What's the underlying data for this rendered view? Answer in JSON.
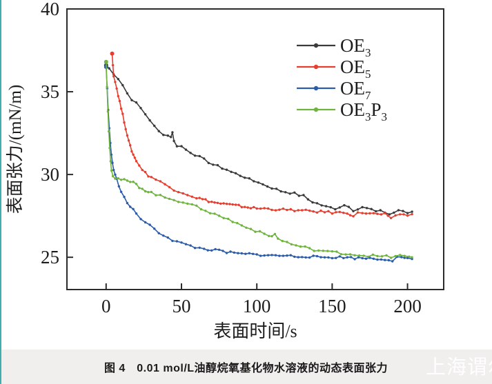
{
  "page": {
    "background": "#ffffff",
    "left_strip_color": "#3fafad",
    "caption_bar_color": "#f0efed"
  },
  "caption": {
    "text": "图 4　0.01 mol/L油醇烷氧基化物水溶液的动态表面张力"
  },
  "watermark": {
    "text": "上海谓尔"
  },
  "chart_data": {
    "type": "scatter",
    "title": "",
    "xlabel": "表面时间/s",
    "ylabel": "表面张力/(mN/m)",
    "xlim": [
      -26,
      224
    ],
    "ylim": [
      23.05,
      40
    ],
    "x_ticks": [
      0,
      50,
      100,
      150,
      200
    ],
    "y_ticks": [
      25,
      30,
      35,
      40
    ],
    "grid": false,
    "legend_position": "upper-right-inside",
    "axis_color": "#2b2b2b",
    "series": [
      {
        "name": "OE3",
        "label_parts": [
          "OE",
          "_3"
        ],
        "color": "#3a3a3a",
        "points": [
          [
            0,
            36.6
          ],
          [
            2,
            36.4
          ],
          [
            5,
            36.1
          ],
          [
            8,
            35.8
          ],
          [
            11,
            35.4
          ],
          [
            14,
            34.9
          ],
          [
            17,
            34.55
          ],
          [
            20,
            34.3
          ],
          [
            23,
            34.0
          ],
          [
            26,
            33.65
          ],
          [
            29,
            33.3
          ],
          [
            32,
            32.9
          ],
          [
            35,
            32.6
          ],
          [
            38,
            32.45
          ],
          [
            41,
            32.35
          ],
          [
            43,
            32.3
          ],
          [
            44,
            32.55
          ],
          [
            45,
            32.0
          ],
          [
            47,
            31.75
          ],
          [
            50,
            31.7
          ],
          [
            53,
            31.5
          ],
          [
            56,
            31.35
          ],
          [
            59,
            31.2
          ],
          [
            62,
            31.05
          ],
          [
            65,
            30.9
          ],
          [
            68,
            30.75
          ],
          [
            71,
            30.6
          ],
          [
            74,
            30.5
          ],
          [
            77,
            30.4
          ],
          [
            80,
            30.3
          ],
          [
            83,
            30.15
          ],
          [
            86,
            30.05
          ],
          [
            89,
            29.95
          ],
          [
            92,
            29.85
          ],
          [
            95,
            29.7
          ],
          [
            98,
            29.6
          ],
          [
            101,
            29.55
          ],
          [
            104,
            29.4
          ],
          [
            107,
            29.3
          ],
          [
            110,
            29.2
          ],
          [
            113,
            29.1
          ],
          [
            116,
            29.0
          ],
          [
            119,
            28.95
          ],
          [
            122,
            28.9
          ],
          [
            125,
            28.85
          ],
          [
            128,
            28.75
          ],
          [
            131,
            28.7
          ],
          [
            134,
            28.5
          ],
          [
            137,
            28.35
          ],
          [
            140,
            28.25
          ],
          [
            143,
            28.15
          ],
          [
            146,
            28.05
          ],
          [
            149,
            28.0
          ],
          [
            152,
            27.95
          ],
          [
            155,
            28.05
          ],
          [
            158,
            28.15
          ],
          [
            161,
            28.1
          ],
          [
            164,
            27.85
          ],
          [
            167,
            27.9
          ],
          [
            170,
            28.0
          ],
          [
            173,
            27.95
          ],
          [
            176,
            27.85
          ],
          [
            179,
            27.8
          ],
          [
            182,
            27.85
          ],
          [
            185,
            27.7
          ],
          [
            188,
            27.6
          ],
          [
            191,
            27.65
          ],
          [
            194,
            27.85
          ],
          [
            197,
            27.8
          ],
          [
            200,
            27.7
          ],
          [
            203,
            27.75
          ]
        ]
      },
      {
        "name": "OE5",
        "label_parts": [
          "OE",
          "_5"
        ],
        "color": "#e63e2e",
        "points": [
          [
            4,
            37.3
          ],
          [
            4.5,
            36.6
          ],
          [
            5,
            36.0
          ],
          [
            6,
            35.6
          ],
          [
            7,
            35.2
          ],
          [
            8,
            34.8
          ],
          [
            9,
            34.4
          ],
          [
            10,
            34.0
          ],
          [
            11,
            33.6
          ],
          [
            12,
            33.2
          ],
          [
            13,
            32.8
          ],
          [
            14,
            32.4
          ],
          [
            15,
            32.0
          ],
          [
            16,
            31.7
          ],
          [
            17,
            31.45
          ],
          [
            18,
            31.2
          ],
          [
            19,
            31.0
          ],
          [
            20,
            30.85
          ],
          [
            22,
            30.55
          ],
          [
            24,
            30.3
          ],
          [
            26,
            30.1
          ],
          [
            28,
            29.95
          ],
          [
            30,
            29.85
          ],
          [
            33,
            29.7
          ],
          [
            36,
            29.55
          ],
          [
            39,
            29.4
          ],
          [
            42,
            29.25
          ],
          [
            45,
            29.1
          ],
          [
            48,
            29.0
          ],
          [
            51,
            28.9
          ],
          [
            54,
            28.8
          ],
          [
            57,
            28.7
          ],
          [
            60,
            28.6
          ],
          [
            64,
            28.5
          ],
          [
            68,
            28.4
          ],
          [
            72,
            28.3
          ],
          [
            76,
            28.25
          ],
          [
            80,
            28.2
          ],
          [
            84,
            28.15
          ],
          [
            88,
            28.1
          ],
          [
            92,
            28.05
          ],
          [
            96,
            28.0
          ],
          [
            100,
            27.95
          ],
          [
            105,
            27.95
          ],
          [
            110,
            27.9
          ],
          [
            115,
            27.9
          ],
          [
            120,
            27.85
          ],
          [
            125,
            27.85
          ],
          [
            130,
            27.8
          ],
          [
            135,
            27.8
          ],
          [
            140,
            27.75
          ],
          [
            145,
            27.75
          ],
          [
            150,
            27.7
          ],
          [
            155,
            27.7
          ],
          [
            160,
            27.7
          ],
          [
            164,
            27.5
          ],
          [
            167,
            27.65
          ],
          [
            170,
            27.7
          ],
          [
            175,
            27.65
          ],
          [
            180,
            27.6
          ],
          [
            185,
            27.6
          ],
          [
            189,
            27.3
          ],
          [
            192,
            27.55
          ],
          [
            195,
            27.6
          ],
          [
            200,
            27.55
          ],
          [
            203,
            27.6
          ]
        ]
      },
      {
        "name": "OE7",
        "label_parts": [
          "OE",
          "_7"
        ],
        "color": "#2a5caa",
        "points": [
          [
            0,
            36.5
          ],
          [
            0.7,
            35.2
          ],
          [
            1.4,
            33.9
          ],
          [
            2.1,
            32.8
          ],
          [
            2.8,
            31.9
          ],
          [
            3.5,
            31.2
          ],
          [
            4.2,
            30.7
          ],
          [
            5,
            30.3
          ],
          [
            6,
            29.95
          ],
          [
            7,
            29.7
          ],
          [
            8.5,
            29.35
          ],
          [
            10,
            29.0
          ],
          [
            12,
            28.6
          ],
          [
            14,
            28.3
          ],
          [
            16,
            28.05
          ],
          [
            18,
            27.85
          ],
          [
            20,
            27.65
          ],
          [
            23,
            27.35
          ],
          [
            26,
            27.1
          ],
          [
            29,
            26.9
          ],
          [
            32,
            26.7
          ],
          [
            35,
            26.5
          ],
          [
            38,
            26.35
          ],
          [
            41,
            26.2
          ],
          [
            44,
            26.05
          ],
          [
            47,
            25.95
          ],
          [
            50,
            25.85
          ],
          [
            53,
            25.75
          ],
          [
            56,
            25.7
          ],
          [
            59,
            25.6
          ],
          [
            62,
            25.55
          ],
          [
            65,
            25.5
          ],
          [
            70,
            25.45
          ],
          [
            75,
            25.4
          ],
          [
            80,
            25.3
          ],
          [
            85,
            25.25
          ],
          [
            90,
            25.2
          ],
          [
            95,
            25.2
          ],
          [
            100,
            25.15
          ],
          [
            105,
            25.15
          ],
          [
            110,
            25.1
          ],
          [
            115,
            25.1
          ],
          [
            120,
            25.1
          ],
          [
            125,
            25.05
          ],
          [
            130,
            25.05
          ],
          [
            135,
            25.05
          ],
          [
            140,
            25.0
          ],
          [
            145,
            25.0
          ],
          [
            150,
            25.0
          ],
          [
            155,
            25.0
          ],
          [
            160,
            25.0
          ],
          [
            165,
            24.95
          ],
          [
            170,
            24.95
          ],
          [
            175,
            24.95
          ],
          [
            180,
            24.9
          ],
          [
            185,
            24.9
          ],
          [
            190,
            24.8
          ],
          [
            193,
            25.0
          ],
          [
            196,
            24.95
          ],
          [
            200,
            24.9
          ],
          [
            203,
            24.9
          ]
        ]
      },
      {
        "name": "OE3P3",
        "label_parts": [
          "OE",
          "_3",
          "P",
          "_3"
        ],
        "color": "#6eb43d",
        "points": [
          [
            0,
            36.8
          ],
          [
            0.6,
            35.3
          ],
          [
            1.2,
            33.8
          ],
          [
            1.8,
            32.6
          ],
          [
            2.4,
            31.6
          ],
          [
            3,
            30.8
          ],
          [
            3.6,
            30.3
          ],
          [
            4.5,
            29.95
          ],
          [
            6,
            29.8
          ],
          [
            8,
            29.75
          ],
          [
            10,
            29.7
          ],
          [
            12,
            29.65
          ],
          [
            14,
            29.6
          ],
          [
            16,
            29.55
          ],
          [
            18,
            29.5
          ],
          [
            20,
            29.4
          ],
          [
            22,
            29.25
          ],
          [
            24,
            29.15
          ],
          [
            26,
            29.05
          ],
          [
            28,
            28.95
          ],
          [
            30,
            28.9
          ],
          [
            33,
            28.8
          ],
          [
            36,
            28.7
          ],
          [
            39,
            28.6
          ],
          [
            42,
            28.55
          ],
          [
            45,
            28.5
          ],
          [
            48,
            28.4
          ],
          [
            51,
            28.35
          ],
          [
            54,
            28.25
          ],
          [
            57,
            28.15
          ],
          [
            60,
            28.05
          ],
          [
            63,
            27.95
          ],
          [
            66,
            27.85
          ],
          [
            69,
            27.7
          ],
          [
            72,
            27.6
          ],
          [
            75,
            27.5
          ],
          [
            78,
            27.4
          ],
          [
            81,
            27.3
          ],
          [
            84,
            27.15
          ],
          [
            87,
            27.05
          ],
          [
            90,
            26.95
          ],
          [
            93,
            26.85
          ],
          [
            96,
            26.7
          ],
          [
            99,
            26.6
          ],
          [
            102,
            26.5
          ],
          [
            105,
            26.4
          ],
          [
            108,
            26.3
          ],
          [
            110,
            26.25
          ],
          [
            112,
            26.45
          ],
          [
            114,
            26.1
          ],
          [
            117,
            26.0
          ],
          [
            120,
            25.9
          ],
          [
            123,
            25.8
          ],
          [
            126,
            25.7
          ],
          [
            129,
            25.65
          ],
          [
            132,
            25.6
          ],
          [
            135,
            25.5
          ],
          [
            138,
            25.45
          ],
          [
            141,
            25.4
          ],
          [
            144,
            25.4
          ],
          [
            147,
            25.35
          ],
          [
            150,
            25.3
          ],
          [
            153,
            25.3
          ],
          [
            156,
            25.25
          ],
          [
            159,
            25.2
          ],
          [
            162,
            25.2
          ],
          [
            165,
            25.15
          ],
          [
            168,
            25.15
          ],
          [
            171,
            25.1
          ],
          [
            174,
            25.1
          ],
          [
            177,
            25.1
          ],
          [
            180,
            25.05
          ],
          [
            183,
            25.05
          ],
          [
            186,
            25.05
          ],
          [
            189,
            25.0
          ],
          [
            192,
            25.1
          ],
          [
            195,
            25.1
          ],
          [
            198,
            25.05
          ],
          [
            201,
            25.0
          ],
          [
            203,
            25.0
          ]
        ]
      }
    ]
  }
}
